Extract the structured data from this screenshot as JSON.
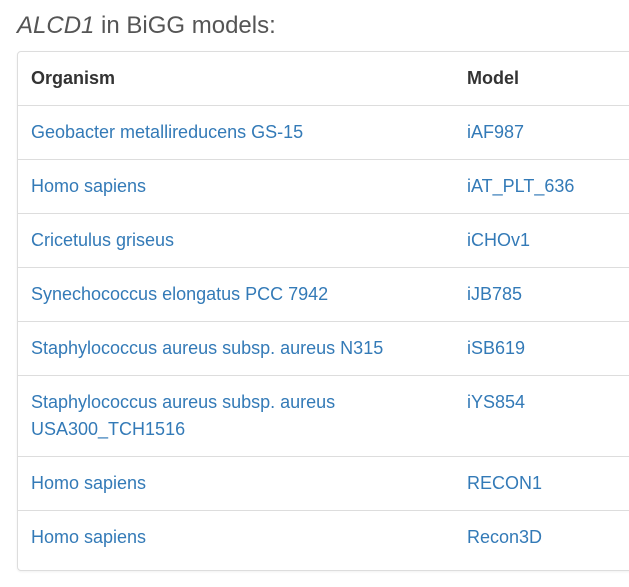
{
  "heading": {
    "gene": "ALCD1",
    "suffix": " in BiGG models:"
  },
  "table": {
    "headers": {
      "organism": "Organism",
      "model": "Model"
    },
    "rows": [
      {
        "organism": "Geobacter metallireducens GS-15",
        "model": "iAF987"
      },
      {
        "organism": "Homo sapiens",
        "model": "iAT_PLT_636"
      },
      {
        "organism": "Cricetulus griseus",
        "model": "iCHOv1"
      },
      {
        "organism": "Synechococcus elongatus PCC 7942",
        "model": "iJB785"
      },
      {
        "organism": "Staphylococcus aureus subsp. aureus N315",
        "model": "iSB619"
      },
      {
        "organism": "Staphylococcus aureus subsp. aureus USA300_TCH1516",
        "model": "iYS854"
      },
      {
        "organism": "Homo sapiens",
        "model": "RECON1"
      },
      {
        "organism": "Homo sapiens",
        "model": "Recon3D"
      }
    ]
  },
  "colors": {
    "link": "#337ab7",
    "border": "#dddddd",
    "heading": "#555555"
  }
}
